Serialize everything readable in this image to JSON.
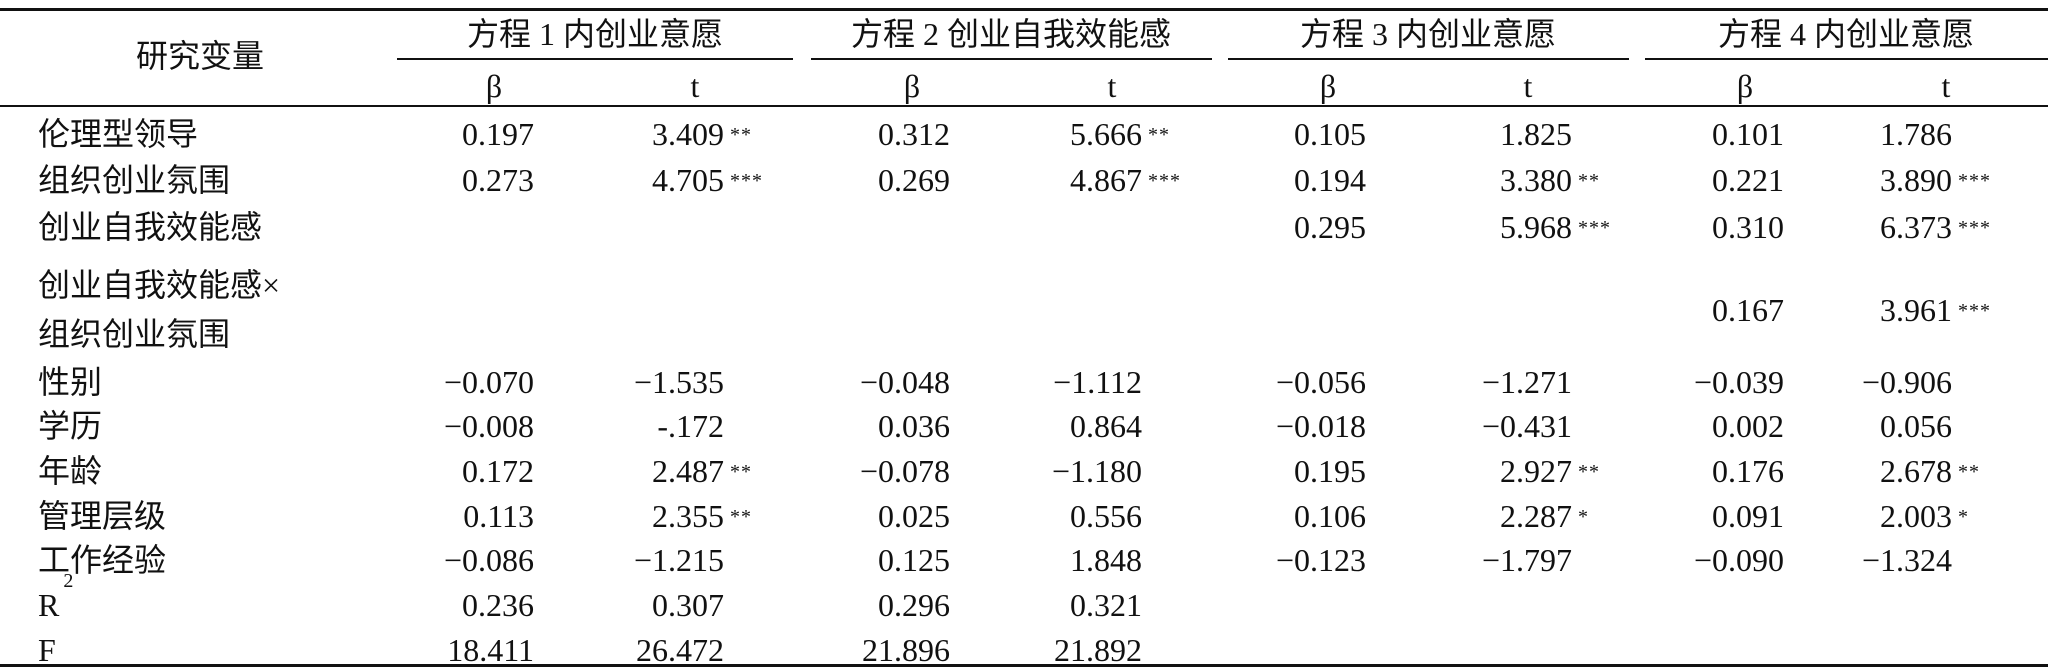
{
  "header": {
    "var_label": "研究变量",
    "groups": [
      "方程 1 内创业意愿",
      "方程 2 创业自我效能感",
      "方程 3 内创业意愿",
      "方程 4 内创业意愿"
    ],
    "sub": [
      "β",
      "t"
    ]
  },
  "rows": [
    {
      "label": "伦理型领导",
      "v": [
        "0.197",
        "3.409",
        "0.312",
        "5.666",
        "0.105",
        "1.825",
        "0.101",
        "1.786"
      ],
      "s": [
        "",
        "**",
        "",
        "**",
        "",
        "",
        "",
        ""
      ]
    },
    {
      "label": "组织创业氛围",
      "v": [
        "0.273",
        "4.705",
        "0.269",
        "4.867",
        "0.194",
        "3.380",
        "0.221",
        "3.890"
      ],
      "s": [
        "",
        "***",
        "",
        "***",
        "",
        "**",
        "",
        "***"
      ]
    },
    {
      "label": "创业自我效能感",
      "v": [
        "",
        "",
        "",
        "",
        "0.295",
        "5.968",
        "0.310",
        "6.373"
      ],
      "s": [
        "",
        "",
        "",
        "",
        "",
        "***",
        "",
        "***"
      ]
    },
    {
      "label": "创业自我效能感×",
      "label2": "组织创业氛围",
      "v": [
        "",
        "",
        "",
        "",
        "",
        "",
        "0.167",
        "3.961"
      ],
      "s": [
        "",
        "",
        "",
        "",
        "",
        "",
        "",
        "***"
      ]
    },
    {
      "label": "性别",
      "v": [
        "−0.070",
        "−1.535",
        "−0.048",
        "−1.112",
        "−0.056",
        "−1.271",
        "−0.039",
        "−0.906"
      ],
      "s": [
        "",
        "",
        "",
        "",
        "",
        "",
        "",
        ""
      ]
    },
    {
      "label": "学历",
      "v": [
        "−0.008",
        "-.172",
        "0.036",
        "0.864",
        "−0.018",
        "−0.431",
        "0.002",
        "0.056"
      ],
      "s": [
        "",
        "",
        "",
        "",
        "",
        "",
        "",
        ""
      ]
    },
    {
      "label": "年龄",
      "v": [
        "0.172",
        "2.487",
        "−0.078",
        "−1.180",
        "0.195",
        "2.927",
        "0.176",
        "2.678"
      ],
      "s": [
        "",
        "**",
        "",
        "",
        "",
        "**",
        "",
        "**"
      ]
    },
    {
      "label": "管理层级",
      "v": [
        "0.113",
        "2.355",
        "0.025",
        "0.556",
        "0.106",
        "2.287",
        "0.091",
        "2.003"
      ],
      "s": [
        "",
        "**",
        "",
        "",
        "",
        "*",
        "",
        "*"
      ]
    },
    {
      "label": "工作经验",
      "v": [
        "−0.086",
        "−1.215",
        "0.125",
        "1.848",
        "−0.123",
        "−1.797",
        "−0.090",
        "−1.324"
      ],
      "s": [
        "",
        "",
        "",
        "",
        "",
        "",
        "",
        ""
      ]
    },
    {
      "label": "R",
      "label_sup": "2",
      "v": [
        "0.236",
        "0.307",
        "0.296",
        "0.321",
        "",
        "",
        "",
        ""
      ],
      "s": [
        "",
        "",
        "",
        "",
        "",
        "",
        "",
        ""
      ]
    },
    {
      "label": "F",
      "v": [
        "18.411",
        "26.472",
        "21.896",
        "21.892",
        "",
        "",
        "",
        ""
      ],
      "s": [
        "",
        "",
        "",
        "",
        "",
        "",
        "",
        ""
      ]
    }
  ]
}
